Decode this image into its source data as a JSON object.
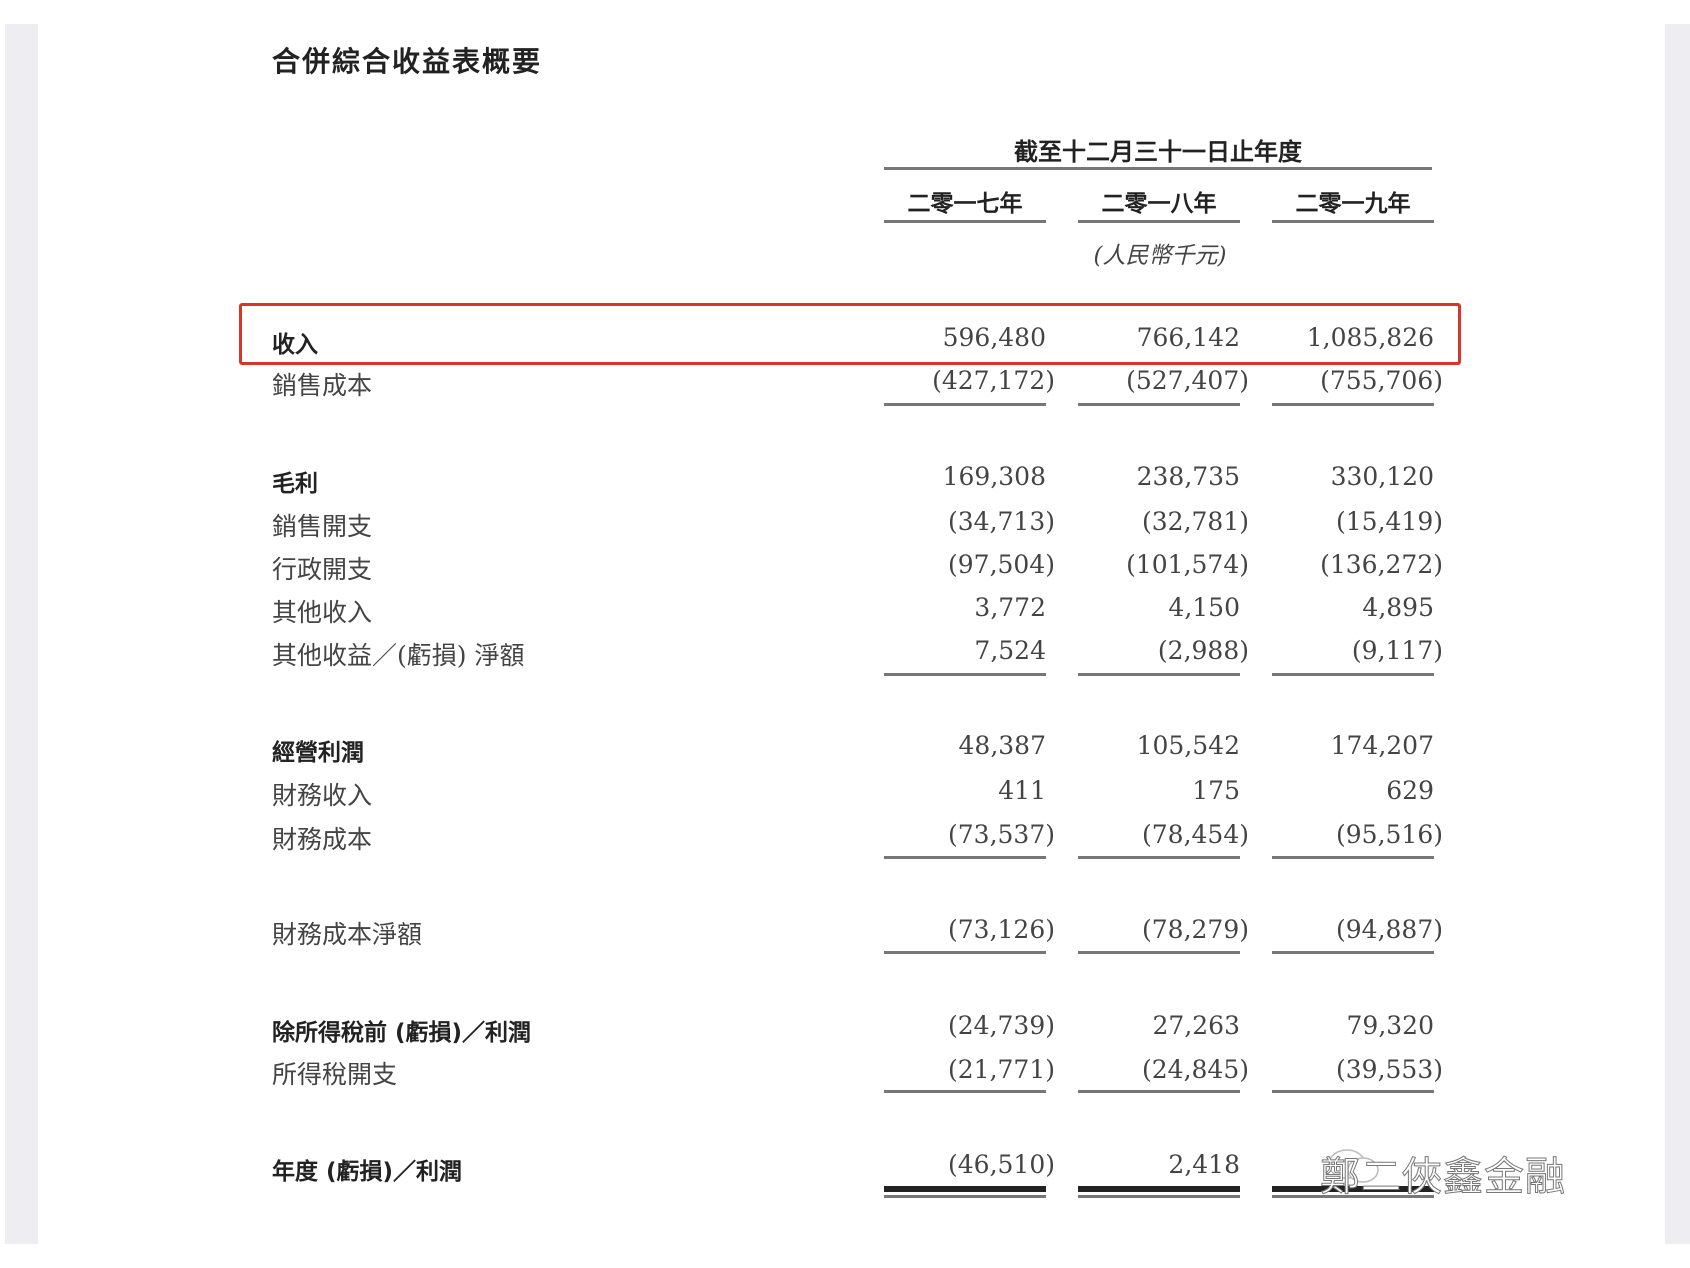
{
  "title": "合併綜合收益表概要",
  "period_header": "截至十二月三十一日止年度",
  "years": [
    "二零一七年",
    "二零一八年",
    "二零一九年"
  ],
  "unit": "(人民幣千元)",
  "highlight_color": "#d9362b",
  "rows": [
    {
      "label": "收入",
      "bold": true,
      "values": [
        "596,480",
        "766,142",
        "1,085,826"
      ],
      "highlighted": true
    },
    {
      "label": "銷售成本",
      "bold": false,
      "values": [
        "(427,172)",
        "(527,407)",
        "(755,706)"
      ]
    },
    {
      "label": "毛利",
      "bold": true,
      "values": [
        "169,308",
        "238,735",
        "330,120"
      ]
    },
    {
      "label": "銷售開支",
      "bold": false,
      "values": [
        "(34,713)",
        "(32,781)",
        "(15,419)"
      ]
    },
    {
      "label": "行政開支",
      "bold": false,
      "values": [
        "(97,504)",
        "(101,574)",
        "(136,272)"
      ]
    },
    {
      "label": "其他收入",
      "bold": false,
      "values": [
        "3,772",
        "4,150",
        "4,895"
      ]
    },
    {
      "label": "其他收益／(虧損) 淨額",
      "bold": false,
      "values": [
        "7,524",
        "(2,988)",
        "(9,117)"
      ]
    },
    {
      "label": "經營利潤",
      "bold": true,
      "values": [
        "48,387",
        "105,542",
        "174,207"
      ]
    },
    {
      "label": "財務收入",
      "bold": false,
      "values": [
        "411",
        "175",
        "629"
      ]
    },
    {
      "label": "財務成本",
      "bold": false,
      "values": [
        "(73,537)",
        "(78,454)",
        "(95,516)"
      ]
    },
    {
      "label": "財務成本淨額",
      "bold": false,
      "values": [
        "(73,126)",
        "(78,279)",
        "(94,887)"
      ]
    },
    {
      "label": "除所得稅前 (虧損)／利潤",
      "bold": true,
      "values": [
        "(24,739)",
        "27,263",
        "79,320"
      ]
    },
    {
      "label": "所得稅開支",
      "bold": false,
      "values": [
        "(21,771)",
        "(24,845)",
        "(39,553)"
      ]
    },
    {
      "label": "年度 (虧損)／利潤",
      "bold": true,
      "values": [
        "(46,510)",
        "2,418",
        ""
      ]
    }
  ],
  "watermark": "鄭二俠鑫金融"
}
